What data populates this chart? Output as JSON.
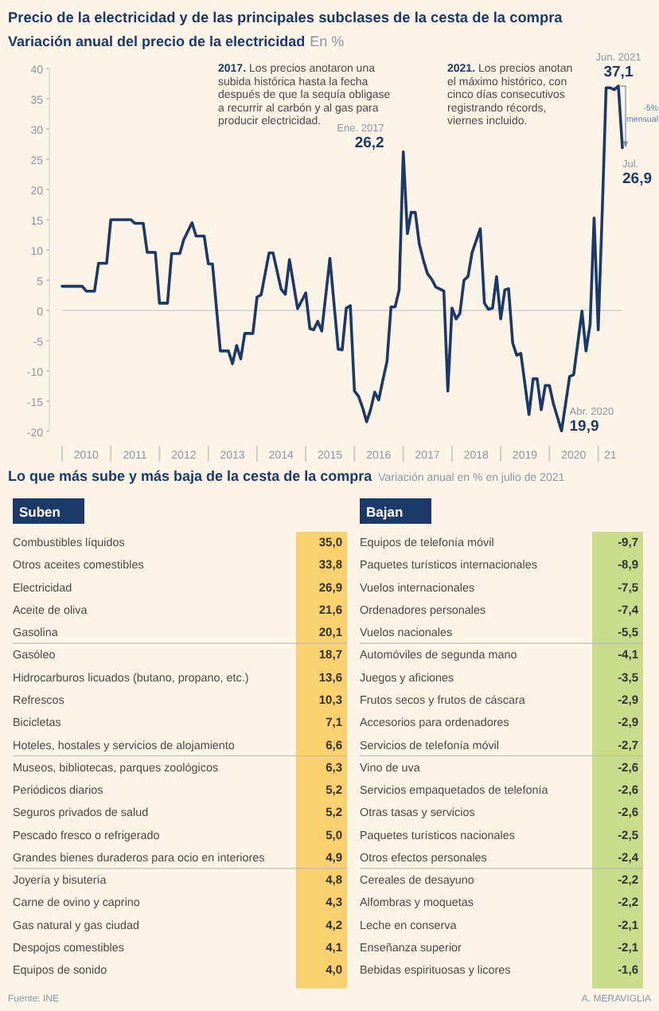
{
  "chart_data": [
    {
      "type": "line",
      "title": "Precio de la electricidad y de las principales subclases de la cesta de la compra",
      "subtitle": "Variación anual del precio de la electricidad",
      "ylabel": "En %",
      "xlim": [
        "2010-01",
        "2021-07"
      ],
      "ylim": [
        -20,
        40
      ],
      "yticks": [
        -20,
        -15,
        -10,
        -5,
        0,
        5,
        10,
        15,
        20,
        25,
        30,
        35,
        40
      ],
      "xticks": [
        {
          "value": "2010-01",
          "label": null
        },
        {
          "value": "2010-07",
          "label": "2010"
        },
        {
          "value": "2011-01",
          "label": null
        },
        {
          "value": "2011-07",
          "label": "2011"
        },
        {
          "value": "2012-01",
          "label": null
        },
        {
          "value": "2012-07",
          "label": "2012"
        },
        {
          "value": "2013-01",
          "label": null
        },
        {
          "value": "2013-07",
          "label": "2013"
        },
        {
          "value": "2014-01",
          "label": null
        },
        {
          "value": "2014-07",
          "label": "2014"
        },
        {
          "value": "2015-01",
          "label": null
        },
        {
          "value": "2015-07",
          "label": "2015"
        },
        {
          "value": "2016-01",
          "label": null
        },
        {
          "value": "2016-07",
          "label": "2016"
        },
        {
          "value": "2017-01",
          "label": null
        },
        {
          "value": "2017-07",
          "label": "2017"
        },
        {
          "value": "2018-01",
          "label": null
        },
        {
          "value": "2018-07",
          "label": "2018"
        },
        {
          "value": "2019-01",
          "label": null
        },
        {
          "value": "2019-07",
          "label": "2019"
        },
        {
          "value": "2020-01",
          "label": null
        },
        {
          "value": "2020-07",
          "label": "2020"
        },
        {
          "value": "2021-01",
          "label": null
        },
        {
          "value": "2021-04",
          "label": "21"
        }
      ],
      "grid": false,
      "ref_lines": [
        {
          "axis": "y",
          "value": 0,
          "color": "#cfcfcf"
        }
      ],
      "series": [
        {
          "color": "#1b3a6a",
          "x": [
            "2010-01",
            "2010-06",
            "2010-07",
            "2010-09",
            "2010-10",
            "2010-12",
            "2011-01",
            "2011-06",
            "2011-07",
            "2011-09",
            "2011-10",
            "2011-12",
            "2012-01",
            "2012-03",
            "2012-04",
            "2012-06",
            "2012-07",
            "2012-09",
            "2012-10",
            "2012-12",
            "2013-01",
            "2013-02",
            "2013-04",
            "2013-06",
            "2013-07",
            "2013-08",
            "2013-09",
            "2013-10",
            "2013-12",
            "2014-01",
            "2014-02",
            "2014-04",
            "2014-05",
            "2014-07",
            "2014-08",
            "2014-09",
            "2014-11",
            "2015-01",
            "2015-02",
            "2015-03",
            "2015-04",
            "2015-05",
            "2015-07",
            "2015-09",
            "2015-10",
            "2015-11",
            "2015-12",
            "2016-01",
            "2016-02",
            "2016-03",
            "2016-04",
            "2016-05",
            "2016-06",
            "2016-07",
            "2016-08",
            "2016-09",
            "2016-10",
            "2016-11",
            "2016-12",
            "2017-01",
            "2017-02",
            "2017-03",
            "2017-04",
            "2017-05",
            "2017-06",
            "2017-07",
            "2017-08",
            "2017-09",
            "2017-11",
            "2017-12",
            "2018-01",
            "2018-02",
            "2018-03",
            "2018-04",
            "2018-05",
            "2018-06",
            "2018-08",
            "2018-09",
            "2018-10",
            "2018-11",
            "2018-12",
            "2019-01",
            "2019-02",
            "2019-03",
            "2019-04",
            "2019-05",
            "2019-06",
            "2019-08",
            "2019-09",
            "2019-10",
            "2019-11",
            "2019-12",
            "2020-01",
            "2020-02",
            "2020-04",
            "2020-06",
            "2020-07",
            "2020-09",
            "2020-10",
            "2020-11",
            "2020-12",
            "2021-01",
            "2021-02",
            "2021-03",
            "2021-04",
            "2021-05",
            "2021-06",
            "2021-07"
          ],
          "values": [
            4.0,
            4.0,
            3.2,
            3.2,
            7.8,
            7.8,
            15.0,
            15.0,
            14.4,
            14.4,
            9.6,
            9.6,
            1.2,
            1.2,
            9.4,
            9.4,
            11.7,
            14.5,
            12.3,
            12.3,
            7.7,
            7.7,
            -6.7,
            -6.7,
            -8.8,
            -5.8,
            -8.0,
            -3.8,
            -3.8,
            2.2,
            2.6,
            9.5,
            9.5,
            3.5,
            2.7,
            8.4,
            0.3,
            2.9,
            -3.0,
            -3.2,
            -1.8,
            -3.4,
            8.6,
            -6.4,
            -6.5,
            0.4,
            0.8,
            -13.3,
            -14.2,
            -16.0,
            -18.4,
            -16.4,
            -13.5,
            -14.8,
            -11.5,
            -8.4,
            0.6,
            0.6,
            3.4,
            26.2,
            12.7,
            16.2,
            16.2,
            11.0,
            8.3,
            6.1,
            5.2,
            3.9,
            3.2,
            -13.3,
            0.4,
            -1.4,
            -0.5,
            5.0,
            5.6,
            9.6,
            13.5,
            1.2,
            0.2,
            0.4,
            5.6,
            -1.4,
            3.4,
            3.6,
            -5.4,
            -7.4,
            -7.1,
            -17.2,
            -11.3,
            -11.3,
            -16.4,
            -12.4,
            -12.4,
            -15.5,
            -19.9,
            -10.9,
            -10.6,
            -0.1,
            -6.7,
            -2.3,
            15.3,
            -3.2,
            17.0,
            36.8,
            36.8,
            36.5,
            37.1,
            26.9
          ]
        }
      ],
      "annotations": [
        "2017. Los precios anotaron una subida histórica hasta la fecha después de que la sequía obligase a recurrir al carbón y al gas para producir electricidad.",
        "2021. Los precios anotan el máximo histórico, con cinco días consecutivos registrando récords, viernes incluido.",
        "-5% mensual",
        {
          "text": "Ene. 2017\n26,2",
          "x": "2017-01",
          "y": 26.2
        },
        {
          "text": "Jun. 2021\n37,1",
          "x": "2021-06",
          "y": 37.1
        },
        {
          "text": "Jul.\n26,9",
          "x": "2021-07",
          "y": 26.9
        },
        {
          "text": "Abr. 2020\n19,9",
          "x": "2020-04",
          "y": -19.9
        }
      ]
    },
    {
      "type": "other",
      "title": "Lo que más sube y más baja de la cesta de la compra",
      "subtitle": "Variación anual en % en julio de 2021",
      "xlabel": "Suben",
      "color": "#fbd06f",
      "value_labels": [
        "35,0",
        "33,8",
        "26,9",
        "21,6",
        "20,1",
        "18,7",
        "13,6",
        "10,3",
        "7,1",
        "6,6",
        "6,3",
        "5,2",
        "5,2",
        "5,0",
        "4,9",
        "4,8",
        "4,3",
        "4,2",
        "4,1",
        "4,0"
      ],
      "categories": [
        "Combustibles líquidos",
        "Otros aceites comestibles",
        "Electricidad",
        "Aceite de oliva",
        "Gasolina",
        "Gasóleo",
        "Hidrocarburos licuados (butano, propano, etc.)",
        "Refrescos",
        "Bicicletas",
        "Hoteles, hostales y servicios de alojamiento",
        "Museos, bibliotecas, parques zoológicos",
        "Periódicos diarios",
        "Seguros privados de salud",
        "Pescado fresco o refrigerado",
        "Grandes bienes duraderos para ocio en interiores",
        "Joyería y bisutería",
        "Carne de ovino y caprino",
        "Gas natural y gas ciudad",
        "Despojos comestibles",
        "Equipos de sonido"
      ],
      "data_labels": true
    },
    {
      "type": "other",
      "xlabel": "Bajan",
      "color": "#c9dc8c",
      "value_labels": [
        "-9,7",
        "-8,9",
        "-7,5",
        "-7,4",
        "-5,5",
        "-4,1",
        "-3,5",
        "-2,9",
        "-2,9",
        "-2,7",
        "-2,6",
        "-2,6",
        "-2,6",
        "-2,5",
        "-2,4",
        "-2,2",
        "-2,2",
        "-2,1",
        "-2,1",
        "-1,6"
      ],
      "categories": [
        "Equipos de telefonía móvil",
        "Paquetes turísticos internacionales",
        "Vuelos internacionales",
        "Ordenadores personales",
        "Vuelos nacionales",
        "Automóviles de segunda mano",
        "Juegos y aficiones",
        "Frutos secos y frutos de cáscara",
        "Accesorios para ordenadores",
        "Servicios de telefonía móvil",
        "Vino de uva",
        "Servicios empaquetados de telefonía",
        "Otras tasas y servicios",
        "Paquetes turísticos nacionales",
        "Otros efectos personales",
        "Cereales de desayuno",
        "Alfombras y moquetas",
        "Leche en conserva",
        "Enseñanza superior",
        "Bebidas espirituosas y licores"
      ],
      "data_labels": true,
      "annotations": [
        "Fuente: INE",
        "A. MERAVIGLIA"
      ]
    }
  ]
}
